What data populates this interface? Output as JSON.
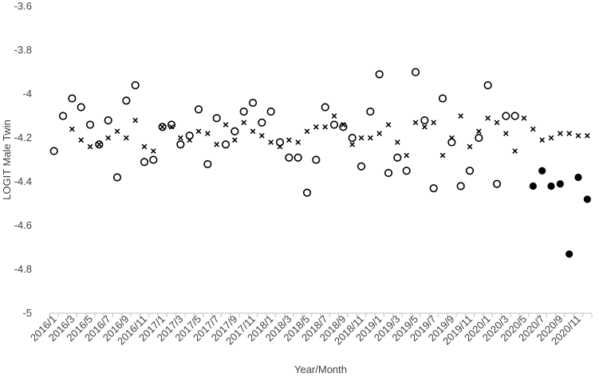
{
  "chart_data": {
    "type": "scatter",
    "xlabel": "Year/Month",
    "ylabel": "LOGIT Male Twin",
    "ylim": [
      -5,
      -3.6
    ],
    "yticks": [
      -3.6,
      -3.8,
      -4,
      -4.2,
      -4.4,
      -4.6,
      -4.8,
      -5
    ],
    "ytick_labels": [
      "-3.6",
      "-3.8",
      "-4",
      "-4.2",
      "-4.4",
      "-4.6",
      "-4.8",
      "-5"
    ],
    "grid": false,
    "legend": "none",
    "x": [
      "2016/1",
      "2016/2",
      "2016/3",
      "2016/4",
      "2016/5",
      "2016/6",
      "2016/7",
      "2016/8",
      "2016/9",
      "2016/10",
      "2016/11",
      "2016/12",
      "2017/1",
      "2017/2",
      "2017/3",
      "2017/4",
      "2017/5",
      "2017/6",
      "2017/7",
      "2017/8",
      "2017/9",
      "2017/10",
      "2017/11",
      "2017/12",
      "2018/1",
      "2018/2",
      "2018/3",
      "2018/4",
      "2018/5",
      "2018/6",
      "2018/7",
      "2018/8",
      "2018/9",
      "2018/10",
      "2018/11",
      "2018/12",
      "2019/1",
      "2019/2",
      "2019/3",
      "2019/4",
      "2019/5",
      "2019/6",
      "2019/7",
      "2019/8",
      "2019/9",
      "2019/10",
      "2019/11",
      "2019/12",
      "2020/1",
      "2020/2",
      "2020/3",
      "2020/4",
      "2020/5",
      "2020/6",
      "2020/7",
      "2020/8",
      "2020/9",
      "2020/10",
      "2020/11",
      "2020/12"
    ],
    "xtick_labels": [
      "2016/1",
      "2016/3",
      "2016/5",
      "2016/7",
      "2016/9",
      "2016/11",
      "2017/1",
      "2017/3",
      "2017/5",
      "2017/7",
      "2017/9",
      "2017/11",
      "2018/1",
      "2018/3",
      "2018/5",
      "2018/7",
      "2018/9",
      "2018/11",
      "2019/1",
      "2019/3",
      "2019/5",
      "2019/7",
      "2019/9",
      "2019/11",
      "2020/1",
      "2020/3",
      "2020/5",
      "2020/7",
      "2020/9",
      "2020/11"
    ],
    "series": [
      {
        "marker": "open-circle",
        "color": "#000000",
        "values": [
          -4.26,
          -4.1,
          -4.02,
          -4.06,
          -4.14,
          -4.23,
          -4.12,
          -4.38,
          -4.03,
          -3.96,
          -4.31,
          -4.3,
          -4.15,
          -4.14,
          -4.23,
          -4.19,
          -4.07,
          -4.32,
          -4.11,
          -4.23,
          -4.17,
          -4.08,
          -4.04,
          -4.13,
          -4.08,
          -4.22,
          -4.29,
          -4.29,
          -4.45,
          -4.3,
          -4.06,
          -4.14,
          -4.15,
          -4.2,
          -4.33,
          -4.08,
          -3.91,
          -4.36,
          -4.29,
          -4.35,
          -3.9,
          -4.12,
          -4.43,
          -4.02,
          -4.22,
          -4.42,
          -4.35,
          -4.2,
          -3.96,
          -4.41,
          -4.1,
          -4.1,
          null,
          null,
          null,
          null,
          null,
          null,
          null,
          null
        ]
      },
      {
        "marker": "x",
        "color": "#000000",
        "values": [
          null,
          null,
          -4.16,
          -4.21,
          -4.24,
          -4.23,
          -4.2,
          -4.17,
          -4.2,
          -4.12,
          -4.24,
          -4.26,
          -4.15,
          -4.15,
          -4.2,
          -4.21,
          -4.17,
          -4.18,
          -4.23,
          -4.14,
          -4.21,
          -4.13,
          -4.17,
          -4.19,
          -4.22,
          -4.24,
          -4.21,
          -4.22,
          -4.17,
          -4.15,
          -4.15,
          -4.1,
          -4.14,
          -4.23,
          -4.2,
          -4.2,
          -4.18,
          -4.14,
          -4.22,
          -4.28,
          -4.13,
          -4.15,
          -4.13,
          -4.28,
          -4.2,
          -4.1,
          -4.24,
          -4.17,
          -4.11,
          -4.13,
          -4.18,
          -4.26,
          -4.11,
          -4.16,
          -4.21,
          -4.2,
          -4.18,
          -4.18,
          -4.19,
          -4.19
        ]
      },
      {
        "marker": "filled-circle",
        "color": "#000000",
        "values": [
          null,
          null,
          null,
          null,
          null,
          null,
          null,
          null,
          null,
          null,
          null,
          null,
          null,
          null,
          null,
          null,
          null,
          null,
          null,
          null,
          null,
          null,
          null,
          null,
          null,
          null,
          null,
          null,
          null,
          null,
          null,
          null,
          null,
          null,
          null,
          null,
          null,
          null,
          null,
          null,
          null,
          null,
          null,
          null,
          null,
          null,
          null,
          null,
          null,
          null,
          null,
          null,
          null,
          -4.42,
          -4.35,
          -4.42,
          -4.41,
          -4.73,
          -4.38,
          -4.48
        ]
      }
    ]
  }
}
